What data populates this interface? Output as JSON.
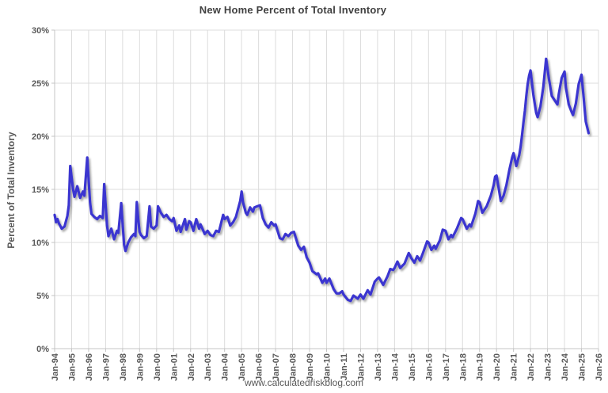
{
  "chart": {
    "title": "New Home Percent of Total Inventory",
    "y_axis_title": "Percent of Total Inventory",
    "footer": "www.calculatedriskblog.com"
  },
  "colors": {
    "background": "#FFFFFF",
    "line": "#3A36D0",
    "gridline": "#DCDCDC",
    "axis": "#C4C4C4",
    "tick_label": "#595959",
    "title": "#404040",
    "footer_text": "#595959"
  },
  "chart_data": {
    "type": "line",
    "title": "New Home Percent of Total Inventory",
    "xlabel": "",
    "ylabel": "Percent of Total Inventory",
    "x_range": [
      1994,
      2026
    ],
    "ylim": [
      0,
      30
    ],
    "grid": true,
    "legend": "none",
    "x_tick_labels": [
      "Jan-94",
      "Jan-95",
      "Jan-96",
      "Jan-97",
      "Jan-98",
      "Jan-99",
      "Jan-00",
      "Jan-01",
      "Jan-02",
      "Jan-03",
      "Jan-04",
      "Jan-05",
      "Jan-06",
      "Jan-07",
      "Jan-08",
      "Jan-09",
      "Jan-10",
      "Jan-11",
      "Jan-12",
      "Jan-13",
      "Jan-14",
      "Jan-15",
      "Jan-16",
      "Jan-17",
      "Jan-18",
      "Jan-19",
      "Jan-20",
      "Jan-21",
      "Jan-22",
      "Jan-23",
      "Jan-24",
      "Jan-25",
      "Jan-26"
    ],
    "y_ticks": [
      0,
      5,
      10,
      15,
      20,
      25,
      30
    ],
    "y_tick_labels": [
      "0%",
      "5%",
      "10%",
      "15%",
      "20%",
      "25%",
      "30%"
    ],
    "series": [
      {
        "name": "New Home Percent of Total Inventory",
        "color": "#3A36D0",
        "points": [
          [
            1994.0,
            12.6
          ],
          [
            1994.083,
            11.9
          ],
          [
            1994.167,
            12.2
          ],
          [
            1994.25,
            11.8
          ],
          [
            1994.417,
            11.3
          ],
          [
            1994.583,
            11.5
          ],
          [
            1994.75,
            12.5
          ],
          [
            1994.833,
            13.5
          ],
          [
            1994.917,
            17.2
          ],
          [
            1995.083,
            15.0
          ],
          [
            1995.167,
            14.3
          ],
          [
            1995.333,
            15.3
          ],
          [
            1995.5,
            14.2
          ],
          [
            1995.667,
            14.8
          ],
          [
            1995.75,
            14.4
          ],
          [
            1995.917,
            18.0
          ],
          [
            1996.083,
            13.8
          ],
          [
            1996.167,
            12.7
          ],
          [
            1996.333,
            12.4
          ],
          [
            1996.5,
            12.2
          ],
          [
            1996.667,
            12.5
          ],
          [
            1996.833,
            12.3
          ],
          [
            1996.917,
            15.5
          ],
          [
            1997.083,
            11.6
          ],
          [
            1997.167,
            10.6
          ],
          [
            1997.333,
            11.3
          ],
          [
            1997.5,
            10.3
          ],
          [
            1997.667,
            11.1
          ],
          [
            1997.75,
            10.9
          ],
          [
            1997.917,
            13.7
          ],
          [
            1998.083,
            9.8
          ],
          [
            1998.167,
            9.2
          ],
          [
            1998.333,
            10.0
          ],
          [
            1998.5,
            10.5
          ],
          [
            1998.667,
            10.8
          ],
          [
            1998.75,
            10.6
          ],
          [
            1998.833,
            13.8
          ],
          [
            1998.917,
            12.2
          ],
          [
            1999.0,
            11.0
          ],
          [
            1999.083,
            10.7
          ],
          [
            1999.25,
            10.4
          ],
          [
            1999.417,
            10.6
          ],
          [
            1999.583,
            13.4
          ],
          [
            1999.667,
            11.5
          ],
          [
            1999.833,
            11.3
          ],
          [
            2000.0,
            11.6
          ],
          [
            2000.083,
            13.4
          ],
          [
            2000.25,
            12.8
          ],
          [
            2000.417,
            12.4
          ],
          [
            2000.583,
            12.6
          ],
          [
            2000.75,
            12.2
          ],
          [
            2000.917,
            12.0
          ],
          [
            2001.0,
            12.3
          ],
          [
            2001.167,
            11.1
          ],
          [
            2001.333,
            11.6
          ],
          [
            2001.417,
            11.0
          ],
          [
            2001.667,
            12.2
          ],
          [
            2001.75,
            11.2
          ],
          [
            2001.917,
            12.0
          ],
          [
            2002.0,
            11.9
          ],
          [
            2002.167,
            11.1
          ],
          [
            2002.333,
            12.2
          ],
          [
            2002.5,
            11.3
          ],
          [
            2002.583,
            11.7
          ],
          [
            2002.833,
            10.8
          ],
          [
            2003.0,
            11.1
          ],
          [
            2003.167,
            10.7
          ],
          [
            2003.333,
            10.6
          ],
          [
            2003.5,
            11.1
          ],
          [
            2003.667,
            11.0
          ],
          [
            2003.917,
            12.6
          ],
          [
            2004.0,
            12.2
          ],
          [
            2004.167,
            12.4
          ],
          [
            2004.333,
            11.6
          ],
          [
            2004.5,
            11.9
          ],
          [
            2004.667,
            12.4
          ],
          [
            2004.75,
            12.9
          ],
          [
            2004.917,
            13.9
          ],
          [
            2005.0,
            14.8
          ],
          [
            2005.083,
            13.8
          ],
          [
            2005.25,
            12.8
          ],
          [
            2005.333,
            12.6
          ],
          [
            2005.5,
            13.3
          ],
          [
            2005.667,
            12.9
          ],
          [
            2005.75,
            13.3
          ],
          [
            2005.917,
            13.4
          ],
          [
            2006.083,
            13.5
          ],
          [
            2006.25,
            12.3
          ],
          [
            2006.417,
            11.7
          ],
          [
            2006.583,
            11.4
          ],
          [
            2006.75,
            11.9
          ],
          [
            2006.917,
            11.6
          ],
          [
            2007.0,
            11.7
          ],
          [
            2007.25,
            10.4
          ],
          [
            2007.417,
            10.3
          ],
          [
            2007.583,
            10.8
          ],
          [
            2007.75,
            10.6
          ],
          [
            2007.917,
            10.9
          ],
          [
            2008.083,
            11.0
          ],
          [
            2008.333,
            9.7
          ],
          [
            2008.5,
            9.3
          ],
          [
            2008.667,
            9.6
          ],
          [
            2008.833,
            8.6
          ],
          [
            2009.0,
            8.1
          ],
          [
            2009.167,
            7.3
          ],
          [
            2009.417,
            7.0
          ],
          [
            2009.5,
            7.1
          ],
          [
            2009.75,
            6.2
          ],
          [
            2009.917,
            6.6
          ],
          [
            2010.0,
            6.2
          ],
          [
            2010.167,
            6.6
          ],
          [
            2010.417,
            5.6
          ],
          [
            2010.583,
            5.2
          ],
          [
            2010.75,
            5.2
          ],
          [
            2010.917,
            5.4
          ],
          [
            2011.0,
            5.1
          ],
          [
            2011.25,
            4.6
          ],
          [
            2011.417,
            4.5
          ],
          [
            2011.583,
            5.0
          ],
          [
            2011.833,
            4.7
          ],
          [
            2012.0,
            5.1
          ],
          [
            2012.167,
            4.7
          ],
          [
            2012.417,
            5.5
          ],
          [
            2012.583,
            5.1
          ],
          [
            2012.833,
            6.3
          ],
          [
            2013.0,
            6.6
          ],
          [
            2013.083,
            6.7
          ],
          [
            2013.333,
            6.0
          ],
          [
            2013.583,
            6.8
          ],
          [
            2013.75,
            7.5
          ],
          [
            2013.917,
            7.4
          ],
          [
            2014.0,
            7.6
          ],
          [
            2014.167,
            8.2
          ],
          [
            2014.333,
            7.6
          ],
          [
            2014.583,
            8.0
          ],
          [
            2014.833,
            9.0
          ],
          [
            2015.0,
            8.5
          ],
          [
            2015.167,
            8.1
          ],
          [
            2015.333,
            8.7
          ],
          [
            2015.5,
            8.3
          ],
          [
            2015.667,
            9.0
          ],
          [
            2015.917,
            10.1
          ],
          [
            2016.0,
            10.0
          ],
          [
            2016.167,
            9.3
          ],
          [
            2016.333,
            9.7
          ],
          [
            2016.417,
            9.4
          ],
          [
            2016.667,
            10.2
          ],
          [
            2016.833,
            11.2
          ],
          [
            2017.0,
            11.1
          ],
          [
            2017.167,
            10.3
          ],
          [
            2017.333,
            10.7
          ],
          [
            2017.417,
            10.5
          ],
          [
            2017.667,
            11.3
          ],
          [
            2017.917,
            12.3
          ],
          [
            2018.0,
            12.2
          ],
          [
            2018.25,
            11.3
          ],
          [
            2018.417,
            11.7
          ],
          [
            2018.5,
            11.5
          ],
          [
            2018.75,
            12.7
          ],
          [
            2018.917,
            13.9
          ],
          [
            2019.0,
            13.8
          ],
          [
            2019.167,
            12.8
          ],
          [
            2019.417,
            13.4
          ],
          [
            2019.667,
            14.4
          ],
          [
            2019.833,
            15.4
          ],
          [
            2019.917,
            16.2
          ],
          [
            2020.0,
            16.3
          ],
          [
            2020.25,
            13.9
          ],
          [
            2020.417,
            14.4
          ],
          [
            2020.583,
            15.4
          ],
          [
            2020.75,
            16.8
          ],
          [
            2020.917,
            18.0
          ],
          [
            2021.0,
            18.4
          ],
          [
            2021.167,
            17.2
          ],
          [
            2021.333,
            18.2
          ],
          [
            2021.417,
            19.0
          ],
          [
            2021.5,
            20.1
          ],
          [
            2021.583,
            21.3
          ],
          [
            2021.667,
            22.4
          ],
          [
            2021.75,
            23.8
          ],
          [
            2021.833,
            24.9
          ],
          [
            2021.917,
            25.7
          ],
          [
            2022.0,
            26.2
          ],
          [
            2022.167,
            23.9
          ],
          [
            2022.333,
            22.2
          ],
          [
            2022.417,
            21.8
          ],
          [
            2022.583,
            22.8
          ],
          [
            2022.75,
            24.6
          ],
          [
            2022.917,
            27.3
          ],
          [
            2023.083,
            25.4
          ],
          [
            2023.25,
            23.8
          ],
          [
            2023.417,
            23.4
          ],
          [
            2023.583,
            23.0
          ],
          [
            2023.667,
            24.0
          ],
          [
            2023.833,
            25.5
          ],
          [
            2024.0,
            26.1
          ],
          [
            2024.083,
            24.6
          ],
          [
            2024.25,
            23.0
          ],
          [
            2024.417,
            22.3
          ],
          [
            2024.5,
            22.0
          ],
          [
            2024.667,
            23.1
          ],
          [
            2024.833,
            24.9
          ],
          [
            2025.0,
            25.8
          ],
          [
            2025.083,
            24.4
          ],
          [
            2025.25,
            21.4
          ],
          [
            2025.417,
            20.3
          ]
        ]
      }
    ]
  }
}
